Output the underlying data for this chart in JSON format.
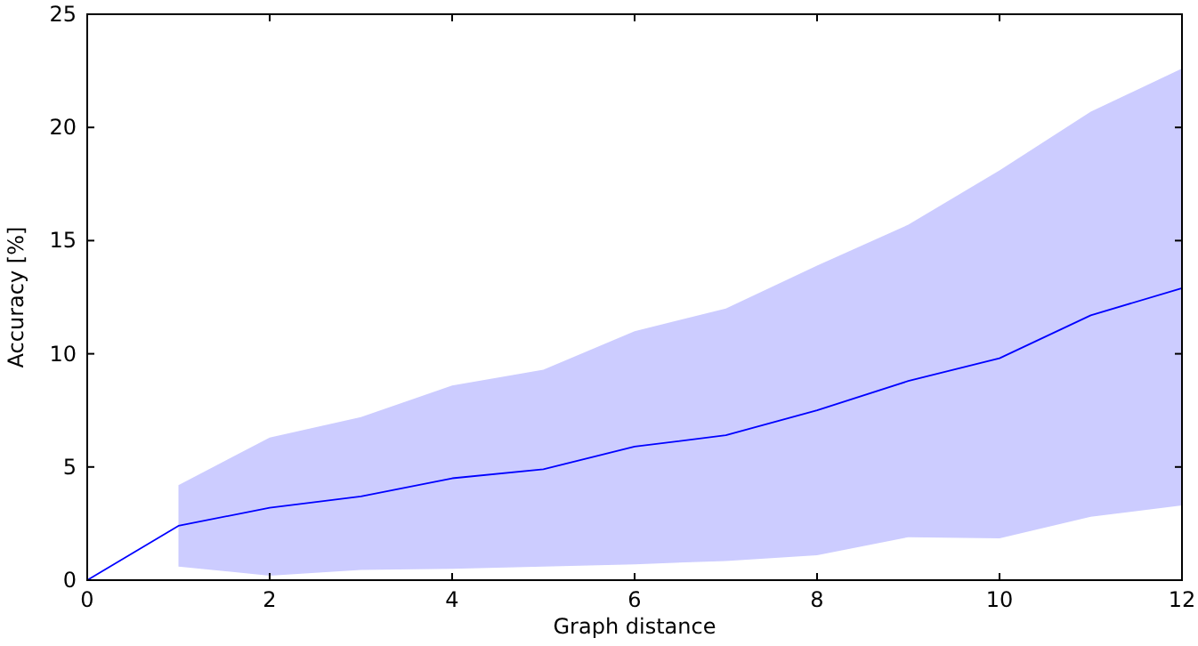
{
  "chart_data": {
    "type": "line",
    "xlabel": "Graph distance",
    "ylabel": "Accuracy [%]",
    "x": [
      0,
      1,
      2,
      3,
      4,
      5,
      6,
      7,
      8,
      9,
      10,
      11,
      12
    ],
    "series": [
      {
        "color": "#0000ff",
        "values": [
          0,
          2.4,
          3.2,
          3.7,
          4.5,
          4.9,
          5.9,
          6.4,
          7.5,
          8.8,
          9.8,
          11.7,
          12.9
        ],
        "lower": [
          null,
          0.6,
          0.2,
          0.45,
          0.5,
          0.6,
          0.7,
          0.85,
          1.1,
          1.9,
          1.85,
          2.8,
          3.3
        ],
        "upper": [
          null,
          4.2,
          6.3,
          7.2,
          8.6,
          9.3,
          11,
          12,
          13.9,
          15.7,
          18.1,
          20.7,
          22.6
        ]
      }
    ],
    "xlim": [
      0,
      12
    ],
    "xticks": [
      0,
      2,
      4,
      6,
      8,
      10,
      12
    ],
    "ylim": [
      0,
      25
    ],
    "yticks": [
      0,
      5,
      10,
      15,
      20,
      25
    ],
    "grid": false,
    "marker": "none",
    "line_style": "solid"
  }
}
